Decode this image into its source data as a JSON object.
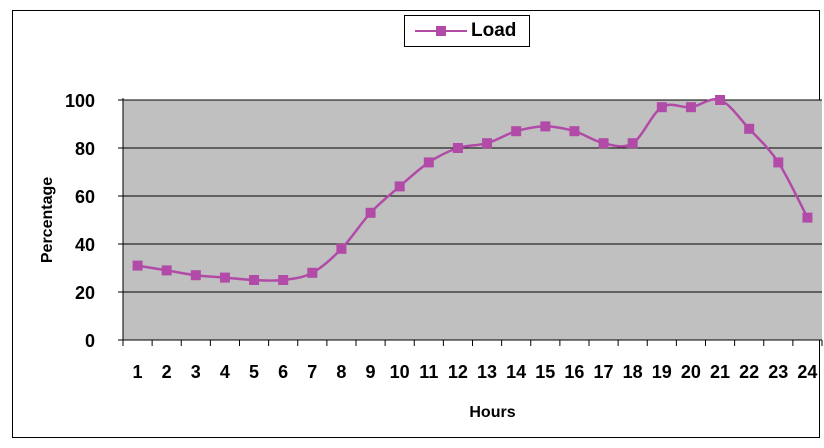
{
  "chart_data": {
    "type": "line",
    "title": "",
    "xlabel": "Hours",
    "ylabel": "Percentage",
    "categories": [
      "1",
      "2",
      "3",
      "4",
      "5",
      "6",
      "7",
      "8",
      "9",
      "10",
      "11",
      "12",
      "13",
      "14",
      "15",
      "16",
      "17",
      "18",
      "19",
      "20",
      "21",
      "22",
      "23",
      "24"
    ],
    "series": [
      {
        "name": "Load",
        "values": [
          31,
          29,
          27,
          26,
          25,
          25,
          28,
          38,
          53,
          64,
          74,
          80,
          82,
          87,
          89,
          87,
          82,
          82,
          97,
          97,
          100,
          88,
          74,
          51
        ],
        "color": "#b24aa8"
      }
    ],
    "ylim": [
      0,
      100
    ],
    "yticks": [
      0,
      20,
      40,
      60,
      80,
      100
    ],
    "grid": true,
    "plot_background": "#c0c0c0",
    "legend_position": "top-center"
  }
}
